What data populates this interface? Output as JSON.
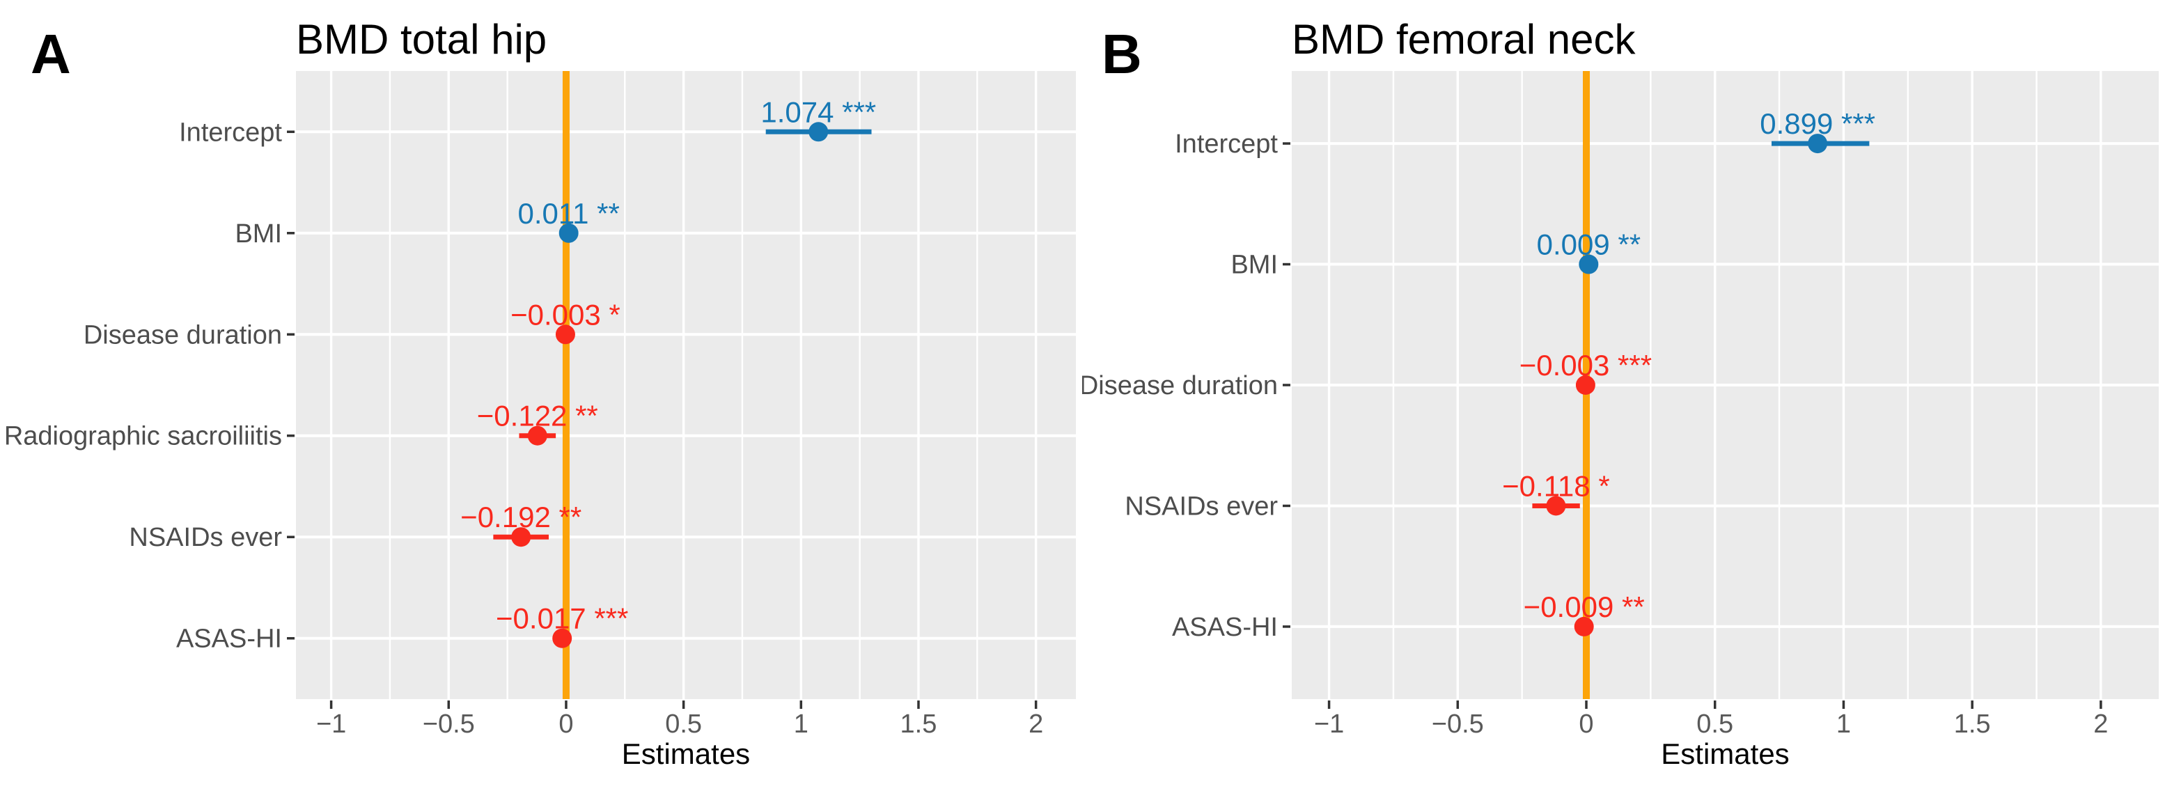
{
  "colors": {
    "positive": "#1778B4",
    "negative": "#F9291D",
    "zero_line": "#FCA40A",
    "panel_background": "#EBEBEB",
    "gridline": "#FFFFFF",
    "axis_text": "#595959",
    "category_text": "#4D4D4D",
    "title_text": "#000000",
    "tick_mark": "#333333"
  },
  "chart_data": [
    {
      "type": "scatter",
      "variant": "forest-coefficient-plot",
      "panel_label": "A",
      "title": "BMD total hip",
      "xlabel": "Estimates",
      "ylabel": "",
      "legend": "none",
      "grid": true,
      "xlim": [
        -1.15,
        2.17
      ],
      "x_ticks": [
        -1,
        -0.5,
        0,
        0.5,
        1,
        1.5,
        2
      ],
      "x_tick_labels": [
        "−1",
        "−0.5",
        "0",
        "0.5",
        "1",
        "1.5",
        "2"
      ],
      "x_minor_ticks": [
        -0.75,
        -0.25,
        0.25,
        0.75,
        1.25,
        1.75
      ],
      "vline_x": 0,
      "rows": [
        {
          "term": "Intercept",
          "estimate": 1.074,
          "estimate_label": "1.074",
          "sig": "***",
          "ci": [
            0.85,
            1.3
          ],
          "direction": "positive"
        },
        {
          "term": "BMI",
          "estimate": 0.011,
          "estimate_label": "0.011",
          "sig": "**",
          "ci": [
            -0.004,
            0.026
          ],
          "direction": "positive"
        },
        {
          "term": "Disease duration",
          "estimate": -0.003,
          "estimate_label": "−0.003",
          "sig": "*",
          "ci": [
            -0.006,
            0.0
          ],
          "direction": "negative"
        },
        {
          "term": "Radiographic sacroiliitis",
          "estimate": -0.122,
          "estimate_label": "−0.122",
          "sig": "**",
          "ci": [
            -0.2,
            -0.044
          ],
          "direction": "negative"
        },
        {
          "term": "NSAIDs ever",
          "estimate": -0.192,
          "estimate_label": "−0.192",
          "sig": "**",
          "ci": [
            -0.31,
            -0.074
          ],
          "direction": "negative"
        },
        {
          "term": "ASAS-HI",
          "estimate": -0.017,
          "estimate_label": "−0.017",
          "sig": "***",
          "ci": [
            -0.027,
            -0.007
          ],
          "direction": "negative"
        }
      ]
    },
    {
      "type": "scatter",
      "variant": "forest-coefficient-plot",
      "panel_label": "B",
      "title": "BMD femoral neck",
      "xlabel": "Estimates",
      "ylabel": "",
      "legend": "none",
      "grid": true,
      "xlim": [
        -1.145,
        2.225
      ],
      "x_ticks": [
        -1,
        -0.5,
        0,
        0.5,
        1,
        1.5,
        2
      ],
      "x_tick_labels": [
        "−1",
        "−0.5",
        "0",
        "0.5",
        "1",
        "1.5",
        "2"
      ],
      "x_minor_ticks": [
        -0.75,
        -0.25,
        0.25,
        0.75,
        1.25,
        1.75
      ],
      "vline_x": 0,
      "rows": [
        {
          "term": "Intercept",
          "estimate": 0.899,
          "estimate_label": "0.899",
          "sig": "***",
          "ci": [
            0.72,
            1.1
          ],
          "direction": "positive"
        },
        {
          "term": "BMI",
          "estimate": 0.009,
          "estimate_label": "0.009",
          "sig": "**",
          "ci": [
            -0.006,
            0.024
          ],
          "direction": "positive"
        },
        {
          "term": "Disease duration",
          "estimate": -0.003,
          "estimate_label": "−0.003",
          "sig": "***",
          "ci": [
            -0.006,
            0.0
          ],
          "direction": "negative"
        },
        {
          "term": "NSAIDs ever",
          "estimate": -0.118,
          "estimate_label": "−0.118",
          "sig": "*",
          "ci": [
            -0.21,
            -0.025
          ],
          "direction": "negative"
        },
        {
          "term": "ASAS-HI",
          "estimate": -0.009,
          "estimate_label": "−0.009",
          "sig": "**",
          "ci": [
            -0.016,
            -0.002
          ],
          "direction": "negative"
        }
      ]
    }
  ]
}
